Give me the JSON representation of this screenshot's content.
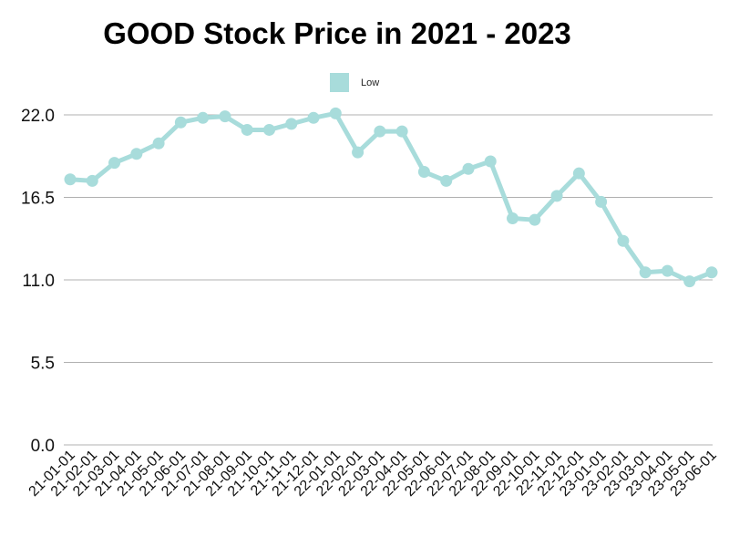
{
  "chart_data": {
    "type": "line",
    "title": "GOOD Stock Price in 2021 - 2023",
    "xlabel": "",
    "ylabel": "",
    "ylim": [
      0,
      22
    ],
    "yticks": [
      "0.0",
      "5.5",
      "11.0",
      "16.5",
      "22.0"
    ],
    "grid": "horizontal",
    "legend_position": "top",
    "categories": [
      "21-01-01",
      "21-02-01",
      "21-03-01",
      "21-04-01",
      "21-05-01",
      "21-06-01",
      "21-07-01",
      "21-08-01",
      "21-09-01",
      "21-10-01",
      "21-11-01",
      "21-12-01",
      "22-01-01",
      "22-02-01",
      "22-03-01",
      "22-04-01",
      "22-05-01",
      "22-06-01",
      "22-07-01",
      "22-08-01",
      "22-09-01",
      "22-10-01",
      "22-11-01",
      "22-12-01",
      "23-01-01",
      "23-02-01",
      "23-03-01",
      "23-04-01",
      "23-05-01",
      "23-06-01"
    ],
    "series": [
      {
        "name": "Low",
        "color": "#a8dcdb",
        "values": [
          17.7,
          17.6,
          18.8,
          19.4,
          20.1,
          21.5,
          21.8,
          21.9,
          21.0,
          21.0,
          21.4,
          21.8,
          22.1,
          19.5,
          20.9,
          20.9,
          18.2,
          17.6,
          18.4,
          18.9,
          15.1,
          15.0,
          16.6,
          18.1,
          16.2,
          13.6,
          11.5,
          11.6,
          10.9,
          11.5
        ]
      }
    ]
  }
}
